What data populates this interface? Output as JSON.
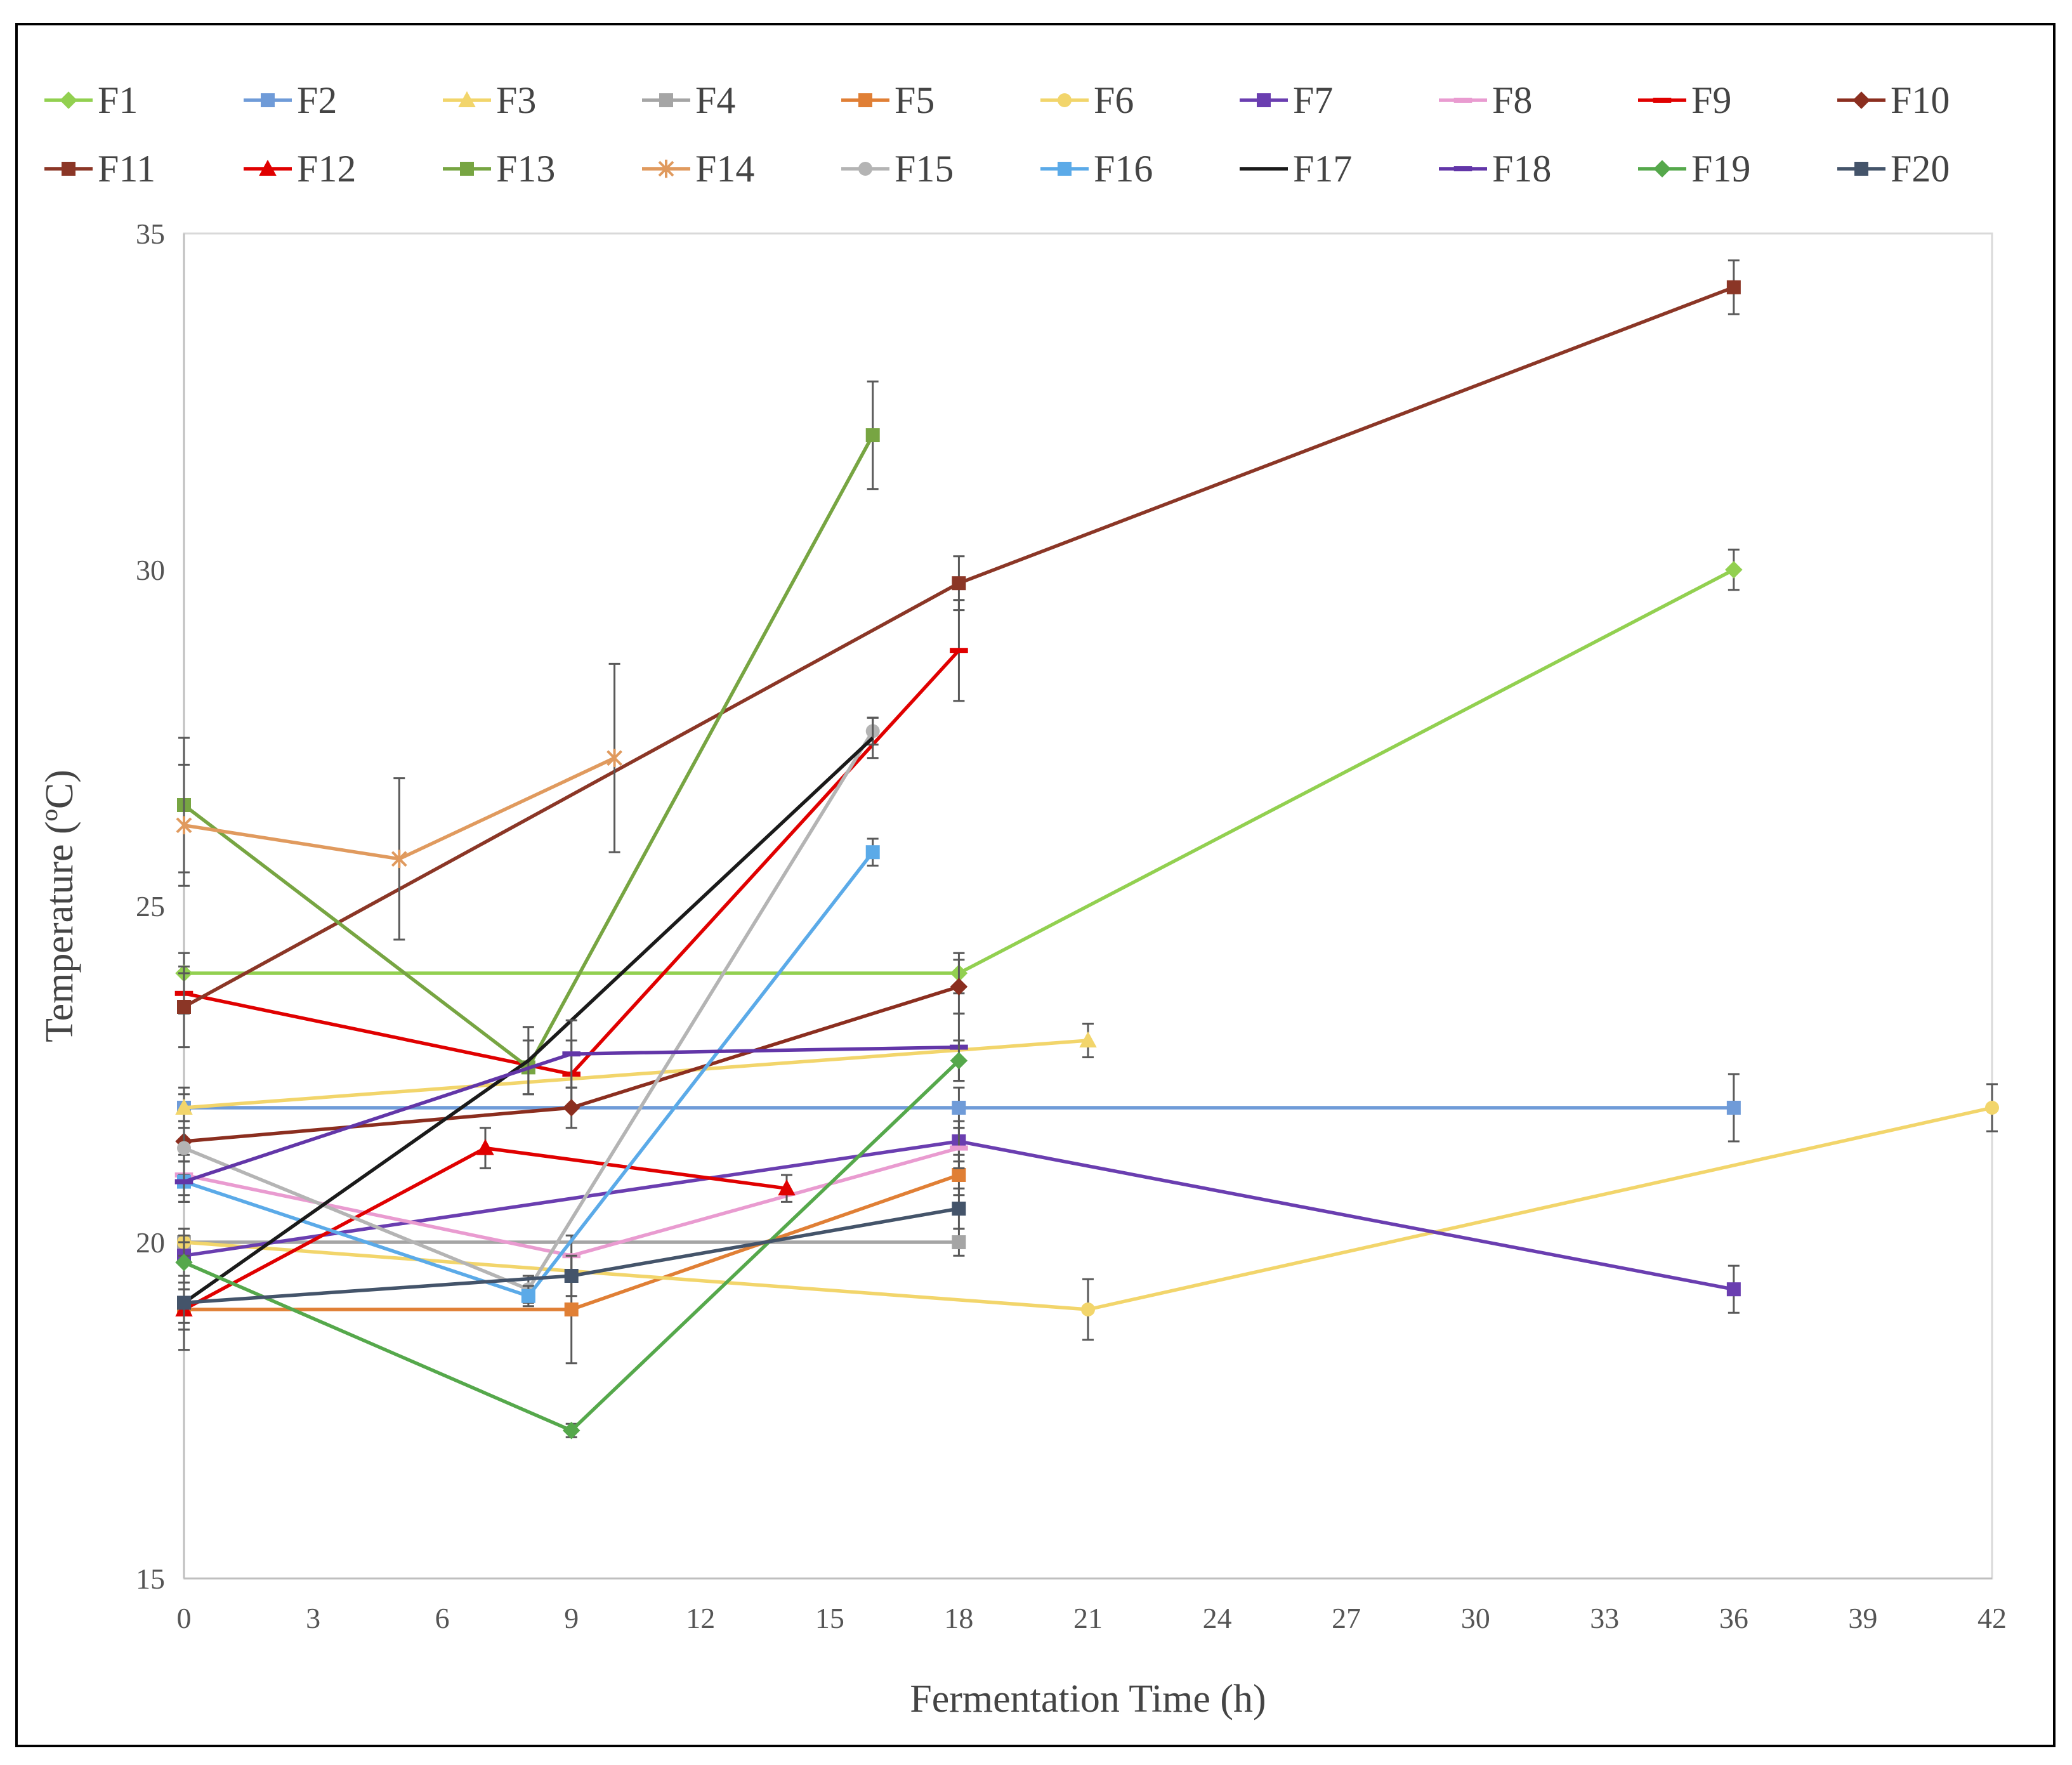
{
  "chart_data": {
    "type": "line",
    "title": "",
    "xlabel": "Fermentation Time (h)",
    "ylabel": "Temperature  (ºC)",
    "xlim": [
      0,
      42
    ],
    "ylim": [
      15,
      35
    ],
    "x_ticks": [
      "0",
      "3",
      "6",
      "9",
      "12",
      "15",
      "18",
      "21",
      "24",
      "27",
      "30",
      "33",
      "36",
      "39",
      "42"
    ],
    "y_ticks": [
      "15",
      "20",
      "25",
      "30",
      "35"
    ],
    "grid": false,
    "legend_position": "top",
    "series": [
      {
        "name": "F1",
        "color": "#92D050",
        "marker": "diamond",
        "x": [
          0,
          18,
          36
        ],
        "y": [
          24.0,
          24.0,
          30.0
        ],
        "err": [
          0.3,
          0.3,
          0.3
        ]
      },
      {
        "name": "F2",
        "color": "#6F9BD8",
        "marker": "square",
        "x": [
          0,
          18,
          36
        ],
        "y": [
          22.0,
          22.0,
          22.0
        ],
        "err": [
          0.3,
          0.3,
          0.5
        ]
      },
      {
        "name": "F3",
        "color": "#F2D56B",
        "marker": "triangle",
        "x": [
          0,
          21
        ],
        "y": [
          22.0,
          23.0
        ],
        "err": [
          0.2,
          0.25
        ]
      },
      {
        "name": "F4",
        "color": "#A5A5A5",
        "marker": "square",
        "x": [
          0,
          18
        ],
        "y": [
          20.0,
          20.0
        ],
        "err": [
          0.2,
          0.2
        ]
      },
      {
        "name": "F5",
        "color": "#E07F35",
        "marker": "square",
        "x": [
          0,
          9,
          18
        ],
        "y": [
          19.0,
          19.0,
          21.0
        ],
        "err": [
          0.3,
          0.8,
          0.3
        ]
      },
      {
        "name": "F6",
        "color": "#F2D56B",
        "marker": "circle",
        "x": [
          0,
          21,
          42
        ],
        "y": [
          20.0,
          19.0,
          22.0
        ],
        "err": [
          0.2,
          0.45,
          0.35
        ]
      },
      {
        "name": "F7",
        "color": "#6A3EB0",
        "marker": "square",
        "x": [
          0,
          18,
          36
        ],
        "y": [
          19.8,
          21.5,
          19.3
        ],
        "err": [
          0.3,
          0.3,
          0.35
        ]
      },
      {
        "name": "F8",
        "color": "#E99BD0",
        "marker": "dash",
        "x": [
          0,
          9,
          18
        ],
        "y": [
          21.0,
          19.8,
          21.4
        ],
        "err": [
          0.3,
          0.3,
          0.3
        ]
      },
      {
        "name": "F9",
        "color": "#E00000",
        "marker": "dash",
        "x": [
          0,
          9,
          18
        ],
        "y": [
          23.7,
          22.5,
          28.8
        ],
        "err": [
          0.3,
          0.5,
          0.75
        ]
      },
      {
        "name": "F10",
        "color": "#8B2E1F",
        "marker": "diamond",
        "x": [
          0,
          9,
          18
        ],
        "y": [
          21.5,
          22.0,
          23.8
        ],
        "err": [
          0.3,
          0.3,
          0.4
        ]
      },
      {
        "name": "F11",
        "color": "#8B3626",
        "marker": "square",
        "x": [
          0,
          18,
          36
        ],
        "y": [
          23.5,
          29.8,
          34.2
        ],
        "err": [
          0.6,
          0.4,
          0.4
        ]
      },
      {
        "name": "F12",
        "color": "#E00000",
        "marker": "triangle",
        "x": [
          0,
          7,
          14
        ],
        "y": [
          19.0,
          21.4,
          20.8
        ],
        "err": [
          0.3,
          0.3,
          0.2
        ]
      },
      {
        "name": "F13",
        "color": "#77A542",
        "marker": "square",
        "x": [
          0,
          8,
          16
        ],
        "y": [
          26.5,
          22.6,
          32.0
        ],
        "err": [
          1.0,
          0.4,
          0.8
        ]
      },
      {
        "name": "F14",
        "color": "#E09A5E",
        "marker": "star",
        "x": [
          0,
          5,
          10
        ],
        "y": [
          26.2,
          25.7,
          27.2
        ],
        "err": [
          0.9,
          1.2,
          1.4
        ]
      },
      {
        "name": "F15",
        "color": "#B4B4B4",
        "marker": "circle",
        "x": [
          0,
          8,
          16
        ],
        "y": [
          21.4,
          19.3,
          27.6
        ],
        "err": [
          0.4,
          0.2,
          0.2
        ]
      },
      {
        "name": "F16",
        "color": "#5BAAE8",
        "marker": "square",
        "x": [
          0,
          8,
          16
        ],
        "y": [
          20.9,
          19.2,
          25.8
        ],
        "err": [
          0.3,
          0.15,
          0.2
        ]
      },
      {
        "name": "F17",
        "color": "#1A1A1A",
        "marker": "none",
        "x": [
          0,
          8,
          16
        ],
        "y": [
          19.1,
          22.7,
          27.5
        ],
        "err": [
          0.7,
          0.5,
          0.3
        ]
      },
      {
        "name": "F18",
        "color": "#6236A8",
        "marker": "dash",
        "x": [
          0,
          9,
          18
        ],
        "y": [
          20.9,
          22.8,
          22.9
        ],
        "err": [
          0.3,
          0.5,
          0.5
        ]
      },
      {
        "name": "F19",
        "color": "#55A84B",
        "marker": "diamond",
        "x": [
          0,
          9,
          18
        ],
        "y": [
          19.7,
          17.2,
          22.7
        ],
        "err": [
          0.3,
          0.1,
          0.3
        ]
      },
      {
        "name": "F20",
        "color": "#44546A",
        "marker": "square",
        "x": [
          0,
          9,
          18
        ],
        "y": [
          19.1,
          19.5,
          20.5
        ],
        "err": [
          0.3,
          0.3,
          0.3
        ]
      }
    ]
  }
}
